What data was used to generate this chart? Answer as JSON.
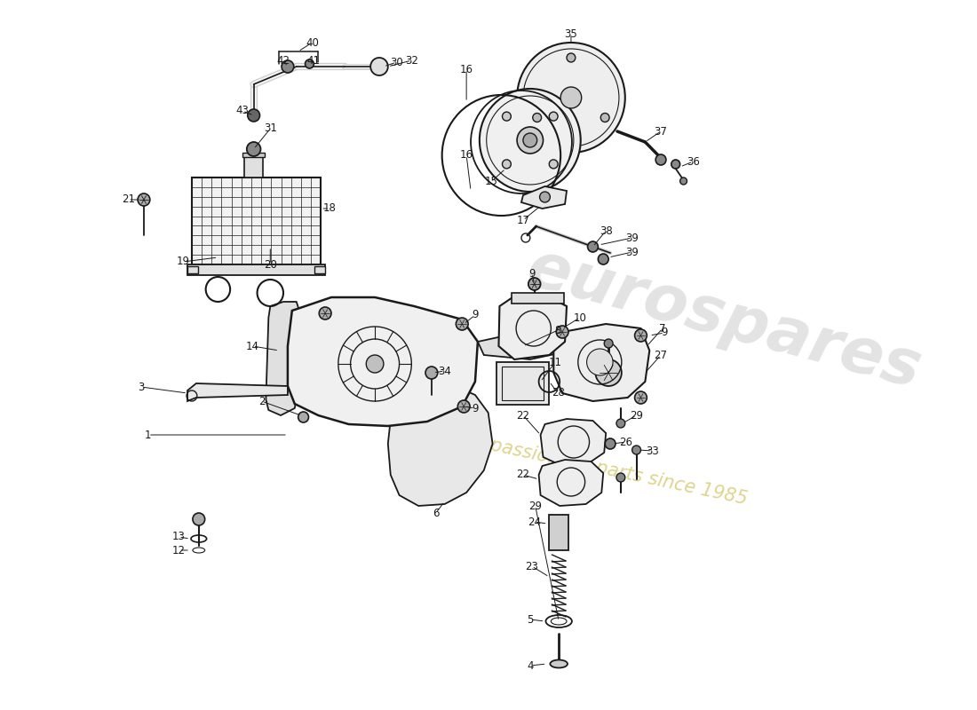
{
  "bg_color": "#ffffff",
  "line_color": "#1a1a1a",
  "label_fontsize": 8.5,
  "watermark1": "eurospares",
  "watermark2": "a passion for parts since 1985",
  "wm1_color": "#cccccc",
  "wm2_color": "#c8b840",
  "wm1_alpha": 0.55,
  "wm2_alpha": 0.6,
  "wm1_size": 52,
  "wm2_size": 15,
  "wm1_rot": -15,
  "wm2_rot": -12
}
